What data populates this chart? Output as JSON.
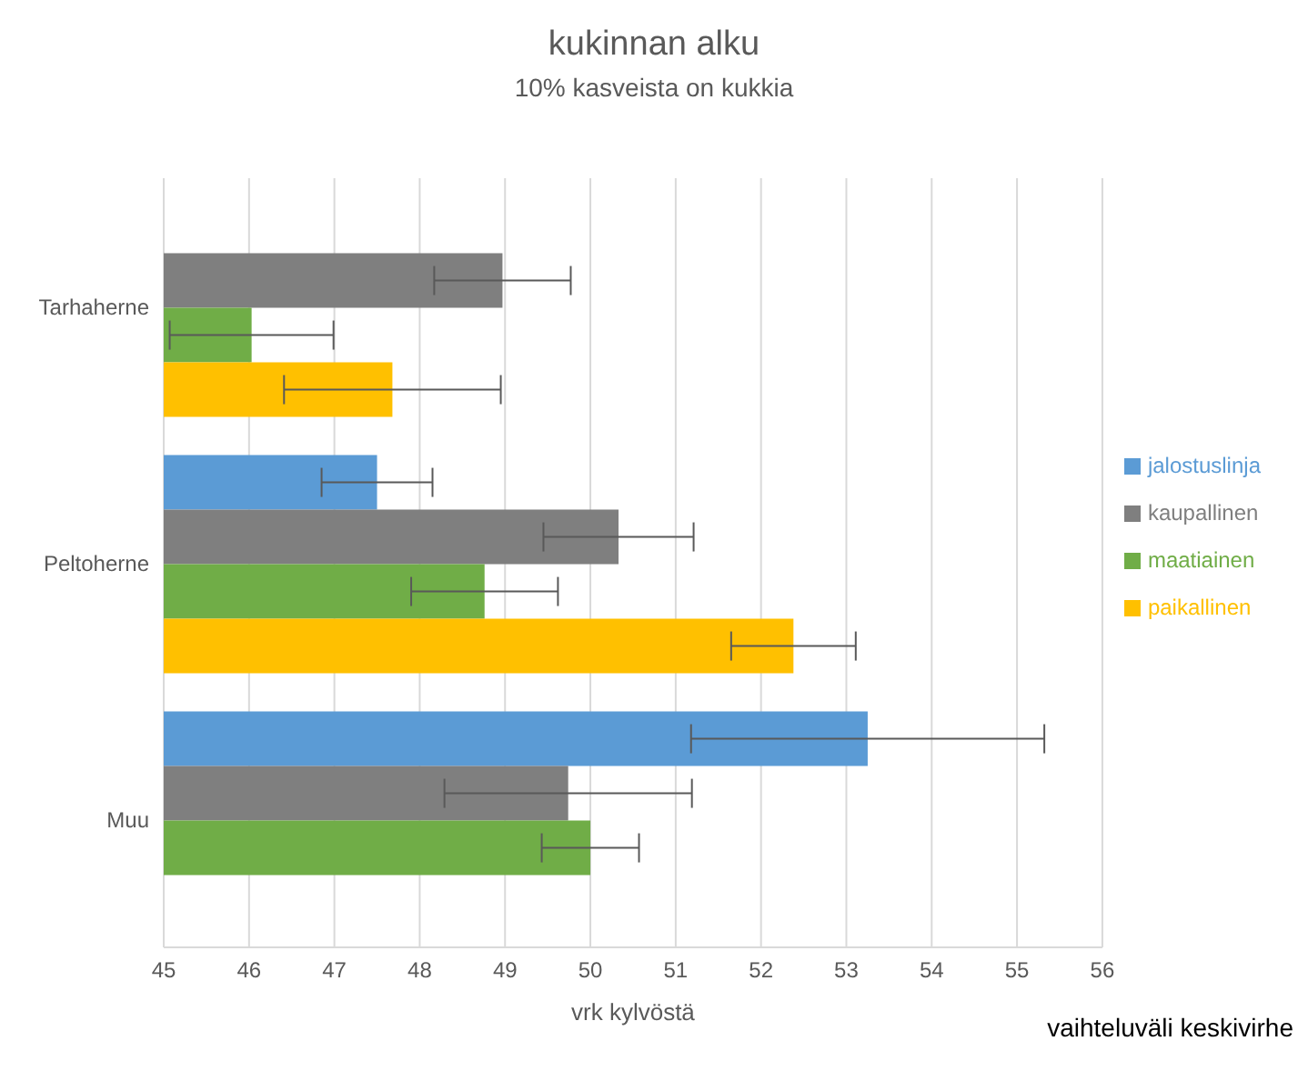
{
  "chart_data": {
    "type": "bar",
    "orientation": "horizontal",
    "title": "kukinnan alku",
    "subtitle": "10% kasveista on kukkia",
    "xlabel": "vrk kylvöstä",
    "categories": [
      "Tarhaherne",
      "Peltoherne",
      "Muu"
    ],
    "series": [
      {
        "name": "jalostuslinja",
        "color": "#5b9bd5",
        "values": [
          null,
          47.5,
          53.25
        ],
        "errors": [
          null,
          0.65,
          2.07
        ]
      },
      {
        "name": "kaupallinen",
        "color": "#7f7f7f",
        "values": [
          48.97,
          50.33,
          49.74
        ],
        "errors": [
          0.8,
          0.88,
          1.45
        ]
      },
      {
        "name": "maatiainen",
        "color": "#70ad47",
        "values": [
          46.03,
          48.76,
          50.0
        ],
        "errors": [
          0.96,
          0.86,
          0.57
        ]
      },
      {
        "name": "paikallinen",
        "color": "#ffc000",
        "values": [
          47.68,
          52.38,
          null
        ],
        "errors": [
          1.27,
          0.73,
          null
        ]
      }
    ],
    "xlim": [
      45,
      56
    ],
    "xticks": [
      45,
      46,
      47,
      48,
      49,
      50,
      51,
      52,
      53,
      54,
      55,
      56
    ],
    "grid": "x",
    "legend": "right",
    "annotations": [
      "vaihteluväli keskivirhe"
    ]
  }
}
